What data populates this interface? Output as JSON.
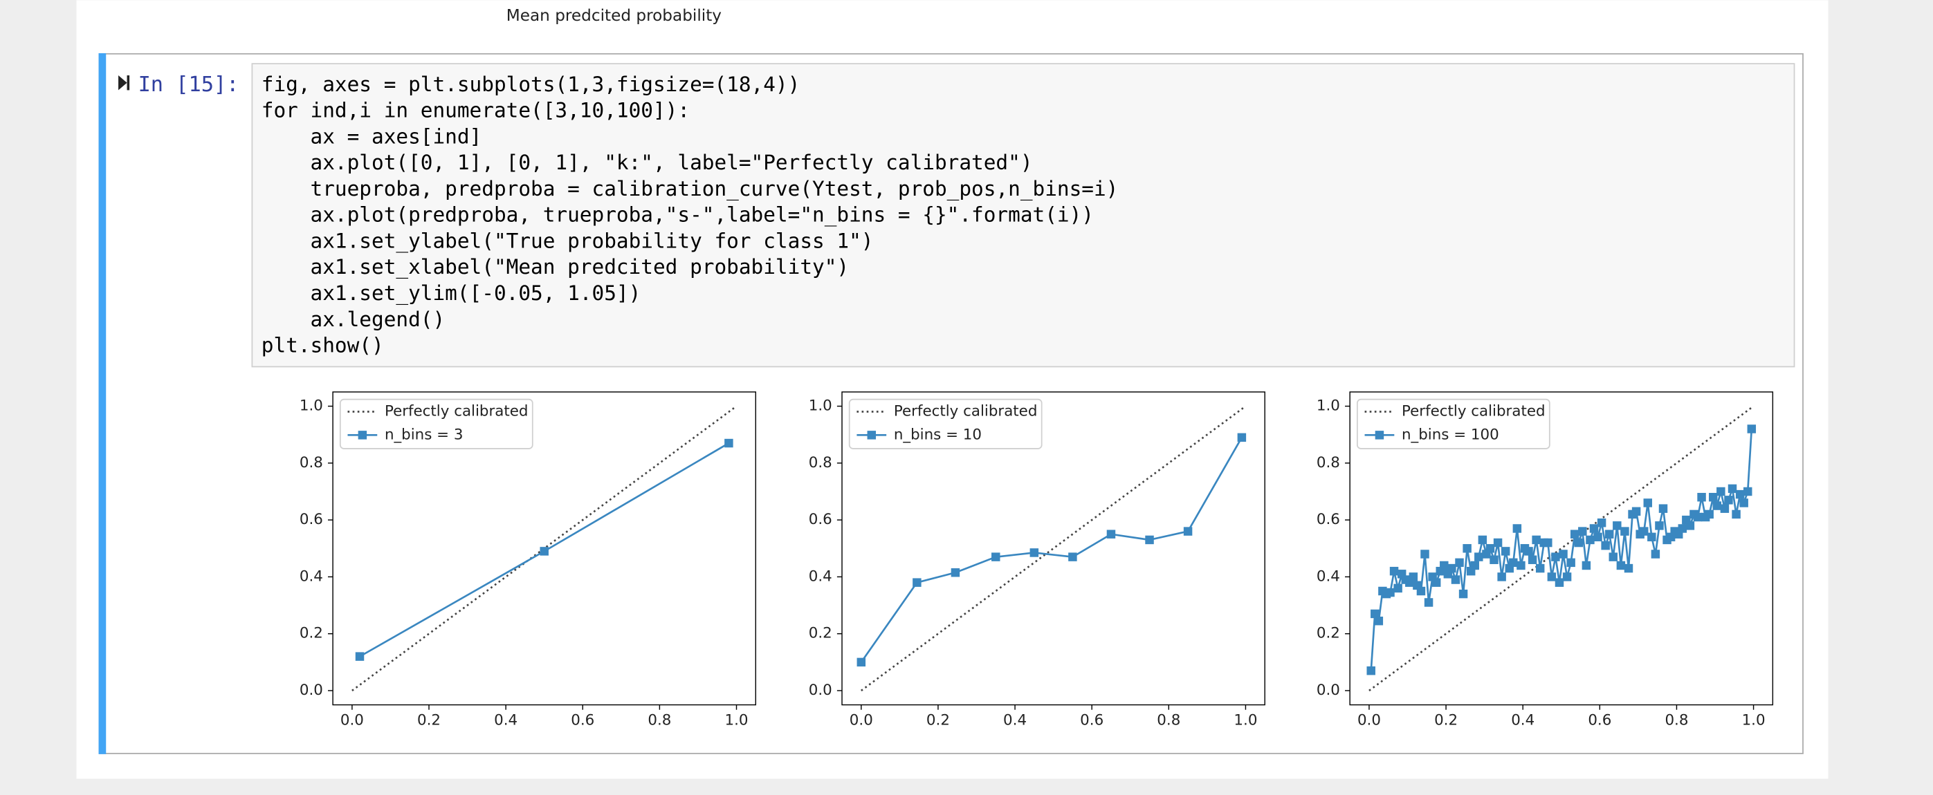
{
  "notebook": {
    "previous_output": {
      "xlabel": "Mean predcited probability"
    },
    "cell": {
      "prompt": "In [15]:",
      "code": [
        "fig, axes = plt.subplots(1,3,figsize=(18,4))",
        "for ind,i in enumerate([3,10,100]):",
        "    ax = axes[ind]",
        "    ax.plot([0, 1], [0, 1], \"k:\", label=\"Perfectly calibrated\")",
        "    trueproba, predproba = calibration_curve(Ytest, prob_pos,n_bins=i)",
        "    ax.plot(predproba, trueproba,\"s-\",label=\"n_bins = {}\".format(i))",
        "    ax1.set_ylabel(\"True probability for class 1\")",
        "    ax1.set_xlabel(\"Mean predcited probability\")",
        "    ax1.set_ylim([-0.05, 1.05])",
        "    ax.legend()",
        "plt.show()"
      ]
    }
  },
  "chart_data": [
    {
      "type": "line",
      "legend": "upper left",
      "xlim": [
        -0.05,
        1.05
      ],
      "ylim": [
        -0.05,
        1.05
      ],
      "xticks": [
        {
          "value": 0,
          "label": "0.0"
        },
        {
          "value": 0.2,
          "label": "0.2"
        },
        {
          "value": 0.4,
          "label": "0.4"
        },
        {
          "value": 0.6,
          "label": "0.6"
        },
        {
          "value": 0.8,
          "label": "0.8"
        },
        {
          "value": 1,
          "label": "1.0"
        }
      ],
      "yticks": [
        {
          "value": 0,
          "label": "0.0"
        },
        {
          "value": 0.2,
          "label": "0.2"
        },
        {
          "value": 0.4,
          "label": "0.4"
        },
        {
          "value": 0.6,
          "label": "0.6"
        },
        {
          "value": 0.8,
          "label": "0.8"
        },
        {
          "value": 1,
          "label": "1.0"
        }
      ],
      "series": [
        {
          "name": "Perfectly calibrated",
          "color": "#444444",
          "style": "dotted",
          "x": [
            0,
            1
          ],
          "values": [
            0,
            1
          ]
        },
        {
          "name": "n_bins = 3",
          "color": "#3a87c0",
          "marker": "square",
          "x": [
            0.02,
            0.5,
            0.98
          ],
          "values": [
            0.12,
            0.49,
            0.87
          ]
        }
      ]
    },
    {
      "type": "line",
      "legend": "upper left",
      "xlim": [
        -0.05,
        1.05
      ],
      "ylim": [
        -0.05,
        1.05
      ],
      "xticks": [
        {
          "value": 0,
          "label": "0.0"
        },
        {
          "value": 0.2,
          "label": "0.2"
        },
        {
          "value": 0.4,
          "label": "0.4"
        },
        {
          "value": 0.6,
          "label": "0.6"
        },
        {
          "value": 0.8,
          "label": "0.8"
        },
        {
          "value": 1,
          "label": "1.0"
        }
      ],
      "yticks": [
        {
          "value": 0,
          "label": "0.0"
        },
        {
          "value": 0.2,
          "label": "0.2"
        },
        {
          "value": 0.4,
          "label": "0.4"
        },
        {
          "value": 0.6,
          "label": "0.6"
        },
        {
          "value": 0.8,
          "label": "0.8"
        },
        {
          "value": 1,
          "label": "1.0"
        }
      ],
      "series": [
        {
          "name": "Perfectly calibrated",
          "color": "#444444",
          "style": "dotted",
          "x": [
            0,
            1
          ],
          "values": [
            0,
            1
          ]
        },
        {
          "name": "n_bins = 10",
          "color": "#3a87c0",
          "marker": "square",
          "x": [
            0.0,
            0.145,
            0.245,
            0.35,
            0.45,
            0.55,
            0.65,
            0.75,
            0.85,
            0.99
          ],
          "values": [
            0.1,
            0.38,
            0.415,
            0.47,
            0.485,
            0.47,
            0.55,
            0.53,
            0.56,
            0.89
          ]
        }
      ]
    },
    {
      "type": "line",
      "legend": "upper left",
      "xlim": [
        -0.05,
        1.05
      ],
      "ylim": [
        -0.05,
        1.05
      ],
      "xticks": [
        {
          "value": 0,
          "label": "0.0"
        },
        {
          "value": 0.2,
          "label": "0.2"
        },
        {
          "value": 0.4,
          "label": "0.4"
        },
        {
          "value": 0.6,
          "label": "0.6"
        },
        {
          "value": 0.8,
          "label": "0.8"
        },
        {
          "value": 1,
          "label": "1.0"
        }
      ],
      "yticks": [
        {
          "value": 0,
          "label": "0.0"
        },
        {
          "value": 0.2,
          "label": "0.2"
        },
        {
          "value": 0.4,
          "label": "0.4"
        },
        {
          "value": 0.6,
          "label": "0.6"
        },
        {
          "value": 0.8,
          "label": "0.8"
        },
        {
          "value": 1,
          "label": "1.0"
        }
      ],
      "series": [
        {
          "name": "Perfectly calibrated",
          "color": "#444444",
          "style": "dotted",
          "x": [
            0,
            1
          ],
          "values": [
            0,
            1
          ]
        },
        {
          "name": "n_bins = 100",
          "color": "#3a87c0",
          "marker": "square",
          "x": [
            0.005,
            0.015,
            0.025,
            0.035,
            0.045,
            0.055,
            0.065,
            0.075,
            0.085,
            0.095,
            0.105,
            0.115,
            0.125,
            0.135,
            0.145,
            0.155,
            0.165,
            0.175,
            0.185,
            0.195,
            0.205,
            0.215,
            0.225,
            0.235,
            0.245,
            0.255,
            0.265,
            0.275,
            0.285,
            0.295,
            0.305,
            0.315,
            0.325,
            0.335,
            0.345,
            0.355,
            0.365,
            0.375,
            0.385,
            0.395,
            0.405,
            0.415,
            0.425,
            0.435,
            0.445,
            0.455,
            0.465,
            0.475,
            0.485,
            0.495,
            0.505,
            0.515,
            0.525,
            0.535,
            0.545,
            0.555,
            0.565,
            0.575,
            0.585,
            0.595,
            0.605,
            0.615,
            0.625,
            0.635,
            0.645,
            0.655,
            0.665,
            0.675,
            0.685,
            0.695,
            0.705,
            0.715,
            0.725,
            0.735,
            0.745,
            0.755,
            0.765,
            0.775,
            0.785,
            0.795,
            0.805,
            0.815,
            0.825,
            0.835,
            0.845,
            0.855,
            0.865,
            0.875,
            0.885,
            0.895,
            0.905,
            0.915,
            0.925,
            0.935,
            0.945,
            0.955,
            0.965,
            0.975,
            0.985,
            0.995
          ],
          "values": [
            0.07,
            0.27,
            0.245,
            0.35,
            0.34,
            0.345,
            0.42,
            0.36,
            0.41,
            0.39,
            0.38,
            0.4,
            0.37,
            0.35,
            0.48,
            0.31,
            0.4,
            0.38,
            0.42,
            0.44,
            0.41,
            0.43,
            0.39,
            0.45,
            0.34,
            0.5,
            0.42,
            0.44,
            0.47,
            0.53,
            0.48,
            0.5,
            0.46,
            0.52,
            0.4,
            0.49,
            0.43,
            0.45,
            0.57,
            0.44,
            0.5,
            0.49,
            0.46,
            0.53,
            0.43,
            0.52,
            0.52,
            0.4,
            0.47,
            0.38,
            0.48,
            0.4,
            0.45,
            0.55,
            0.52,
            0.56,
            0.44,
            0.53,
            0.57,
            0.54,
            0.59,
            0.51,
            0.55,
            0.47,
            0.58,
            0.44,
            0.56,
            0.43,
            0.62,
            0.63,
            0.55,
            0.56,
            0.66,
            0.54,
            0.48,
            0.58,
            0.64,
            0.53,
            0.54,
            0.56,
            0.55,
            0.57,
            0.6,
            0.58,
            0.62,
            0.61,
            0.68,
            0.61,
            0.62,
            0.68,
            0.65,
            0.7,
            0.64,
            0.67,
            0.71,
            0.62,
            0.69,
            0.66,
            0.7,
            0.92
          ]
        }
      ]
    }
  ]
}
